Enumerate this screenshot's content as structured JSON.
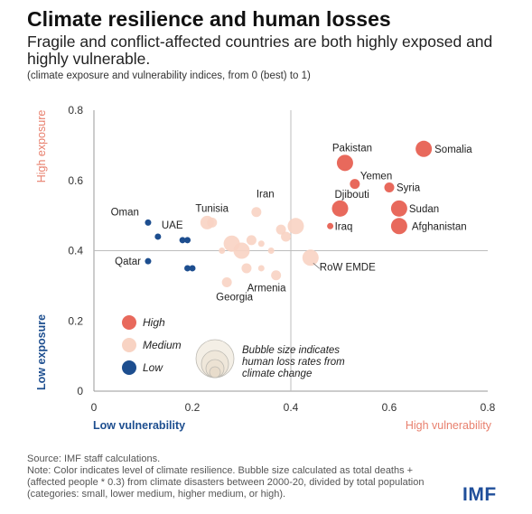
{
  "header": {
    "title": "Climate resilience and human losses",
    "subtitle": "Fragile and conflict-affected countries are both highly exposed and highly vulnerable.",
    "units_note": "(climate exposure and vulnerability indices, from 0 (best) to 1)"
  },
  "chart_data": {
    "type": "scatter",
    "xlim": [
      0,
      0.8
    ],
    "ylim": [
      0,
      0.8
    ],
    "xticks": [
      "0",
      "0.2",
      "0.4",
      "0.6",
      "0.8"
    ],
    "yticks": [
      "0",
      "0.2",
      "0.4",
      "0.6",
      "0.8"
    ],
    "x_low_label": "Low vulnerability",
    "x_high_label": "High vulnerability",
    "y_low_label": "Low exposure",
    "y_high_label": "High exposure",
    "reference_lines": {
      "x": 0.4,
      "y": 0.4
    },
    "grid": false,
    "colors": {
      "High": "#e8695c",
      "Medium": "#f8d3c3",
      "Low": "#1d4e8f",
      "low_label": "#1d4e8f",
      "high_label": "#e8806e"
    },
    "legend": {
      "placement": "bottom-left",
      "items": [
        "High",
        "Medium",
        "Low"
      ],
      "size_note": "Bubble size indicates human loss rates from climate change"
    },
    "points": [
      {
        "label": "Somalia",
        "x": 0.67,
        "y": 0.69,
        "cat": "High",
        "size": 4
      },
      {
        "label": "Pakistan",
        "x": 0.51,
        "y": 0.65,
        "cat": "High",
        "size": 4
      },
      {
        "label": "Yemen",
        "x": 0.53,
        "y": 0.59,
        "cat": "High",
        "size": 2
      },
      {
        "label": "Syria",
        "x": 0.6,
        "y": 0.58,
        "cat": "High",
        "size": 2
      },
      {
        "label": "Djibouti",
        "x": 0.5,
        "y": 0.52,
        "cat": "High",
        "size": 4
      },
      {
        "label": "Sudan",
        "x": 0.62,
        "y": 0.52,
        "cat": "High",
        "size": 4
      },
      {
        "label": "Iraq",
        "x": 0.48,
        "y": 0.47,
        "cat": "High",
        "size": 1
      },
      {
        "label": "Afghanistan",
        "x": 0.62,
        "y": 0.47,
        "cat": "High",
        "size": 4
      },
      {
        "label": "Tunisia",
        "x": 0.23,
        "y": 0.48,
        "cat": "Medium",
        "size": 3
      },
      {
        "label": "Iran",
        "x": 0.33,
        "y": 0.51,
        "cat": "Medium",
        "size": 2
      },
      {
        "label": "RoW EMDE",
        "x": 0.44,
        "y": 0.38,
        "cat": "Medium",
        "size": 4
      },
      {
        "label": "Georgia",
        "x": 0.27,
        "y": 0.31,
        "cat": "Medium",
        "size": 2
      },
      {
        "label": "Armenia",
        "x": 0.37,
        "y": 0.33,
        "cat": "Medium",
        "size": 2
      },
      {
        "label": "",
        "x": 0.24,
        "y": 0.48,
        "cat": "Medium",
        "size": 2
      },
      {
        "label": "",
        "x": 0.41,
        "y": 0.47,
        "cat": "Medium",
        "size": 4
      },
      {
        "label": "",
        "x": 0.38,
        "y": 0.46,
        "cat": "Medium",
        "size": 2
      },
      {
        "label": "",
        "x": 0.39,
        "y": 0.44,
        "cat": "Medium",
        "size": 2
      },
      {
        "label": "",
        "x": 0.28,
        "y": 0.42,
        "cat": "Medium",
        "size": 4
      },
      {
        "label": "",
        "x": 0.3,
        "y": 0.4,
        "cat": "Medium",
        "size": 4
      },
      {
        "label": "",
        "x": 0.26,
        "y": 0.4,
        "cat": "Medium",
        "size": 1
      },
      {
        "label": "",
        "x": 0.32,
        "y": 0.43,
        "cat": "Medium",
        "size": 2
      },
      {
        "label": "",
        "x": 0.34,
        "y": 0.42,
        "cat": "Medium",
        "size": 1
      },
      {
        "label": "",
        "x": 0.36,
        "y": 0.4,
        "cat": "Medium",
        "size": 1
      },
      {
        "label": "",
        "x": 0.31,
        "y": 0.35,
        "cat": "Medium",
        "size": 2
      },
      {
        "label": "",
        "x": 0.34,
        "y": 0.35,
        "cat": "Medium",
        "size": 1
      },
      {
        "label": "Oman",
        "x": 0.11,
        "y": 0.48,
        "cat": "Low",
        "size": 1
      },
      {
        "label": "UAE",
        "x": 0.13,
        "y": 0.44,
        "cat": "Low",
        "size": 1
      },
      {
        "label": "",
        "x": 0.18,
        "y": 0.43,
        "cat": "Low",
        "size": 1
      },
      {
        "label": "",
        "x": 0.19,
        "y": 0.43,
        "cat": "Low",
        "size": 1
      },
      {
        "label": "Qatar",
        "x": 0.11,
        "y": 0.37,
        "cat": "Low",
        "size": 1
      },
      {
        "label": "",
        "x": 0.19,
        "y": 0.35,
        "cat": "Low",
        "size": 1
      },
      {
        "label": "",
        "x": 0.2,
        "y": 0.35,
        "cat": "Low",
        "size": 1
      }
    ]
  },
  "footer": {
    "source": "Source: IMF staff calculations.",
    "note": "Note: Color indicates level of climate resilience. Bubble size calculated as total deaths + (affected people * 0.3) from climate disasters between 2000-20, divided by total population (categories: small, lower medium, higher medium, or high).",
    "logo": "IMF"
  }
}
